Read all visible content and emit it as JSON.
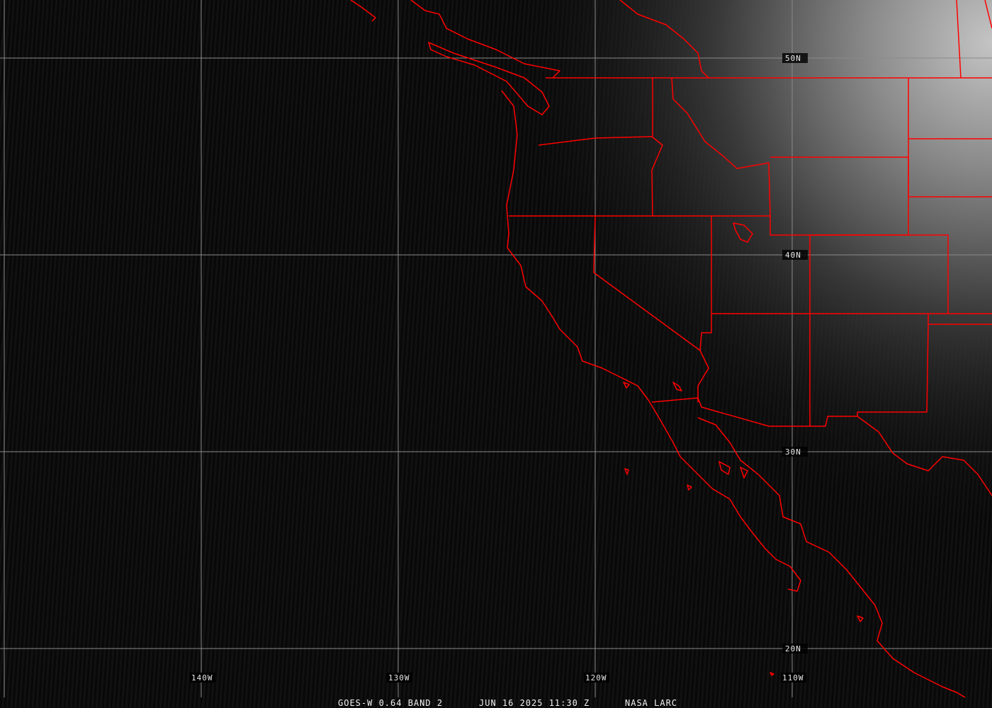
{
  "map": {
    "colors": {
      "background": "#080808",
      "grid": "#8a8a8a",
      "borders": "#ff0000",
      "clouds": "#bdbdbd",
      "text": "#f0f0f0"
    },
    "latitude_labels": [
      "50N",
      "40N",
      "30N",
      "20N"
    ],
    "longitude_labels": [
      "140W",
      "130W",
      "120W",
      "110W"
    ],
    "caption": {
      "product": "GOES-W 0.64 BAND 2",
      "datetime": "JUN 16 2025 11:30 Z",
      "source": "NASA LARC"
    }
  }
}
